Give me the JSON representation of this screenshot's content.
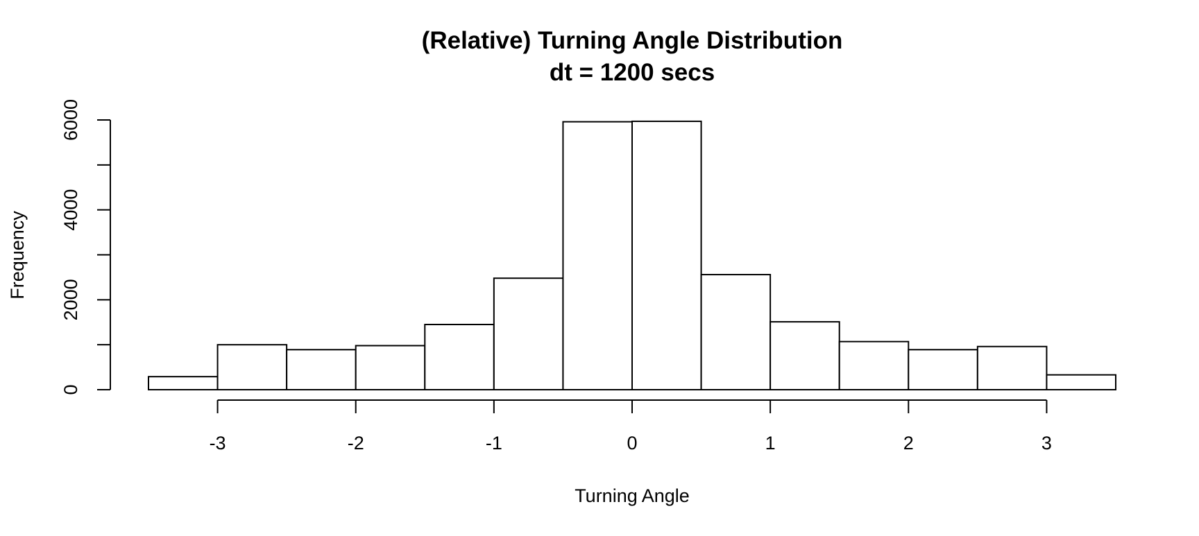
{
  "chart_data": {
    "type": "bar",
    "title": "(Relative) Turning Angle Distribution",
    "subtitle": "dt = 1200 secs",
    "xlabel": "Turning Angle",
    "ylabel": "Frequency",
    "bin_edges": [
      -3.5,
      -3.0,
      -2.5,
      -2.0,
      -1.5,
      -1.0,
      -0.5,
      0.0,
      0.5,
      1.0,
      1.5,
      2.0,
      2.5,
      3.0,
      3.5
    ],
    "values": [
      290,
      1000,
      890,
      980,
      1450,
      2480,
      5960,
      5970,
      2560,
      1510,
      1070,
      890,
      960,
      330
    ],
    "xlim": [
      -3.5,
      3.5
    ],
    "ylim": [
      0,
      6000
    ],
    "x_ticks": [
      -3,
      -2,
      -1,
      0,
      1,
      2,
      3
    ],
    "x_tick_labels": [
      "-3",
      "-2",
      "-1",
      "0",
      "1",
      "2",
      "3"
    ],
    "y_ticks": [
      0,
      1000,
      2000,
      3000,
      4000,
      5000,
      6000
    ],
    "y_tick_labels": [
      "0",
      "",
      "2000",
      "",
      "4000",
      "",
      "6000"
    ],
    "grid": false,
    "legend": "none",
    "colors": {
      "bar_fill": "#ffffff",
      "bar_stroke": "#000000"
    }
  }
}
